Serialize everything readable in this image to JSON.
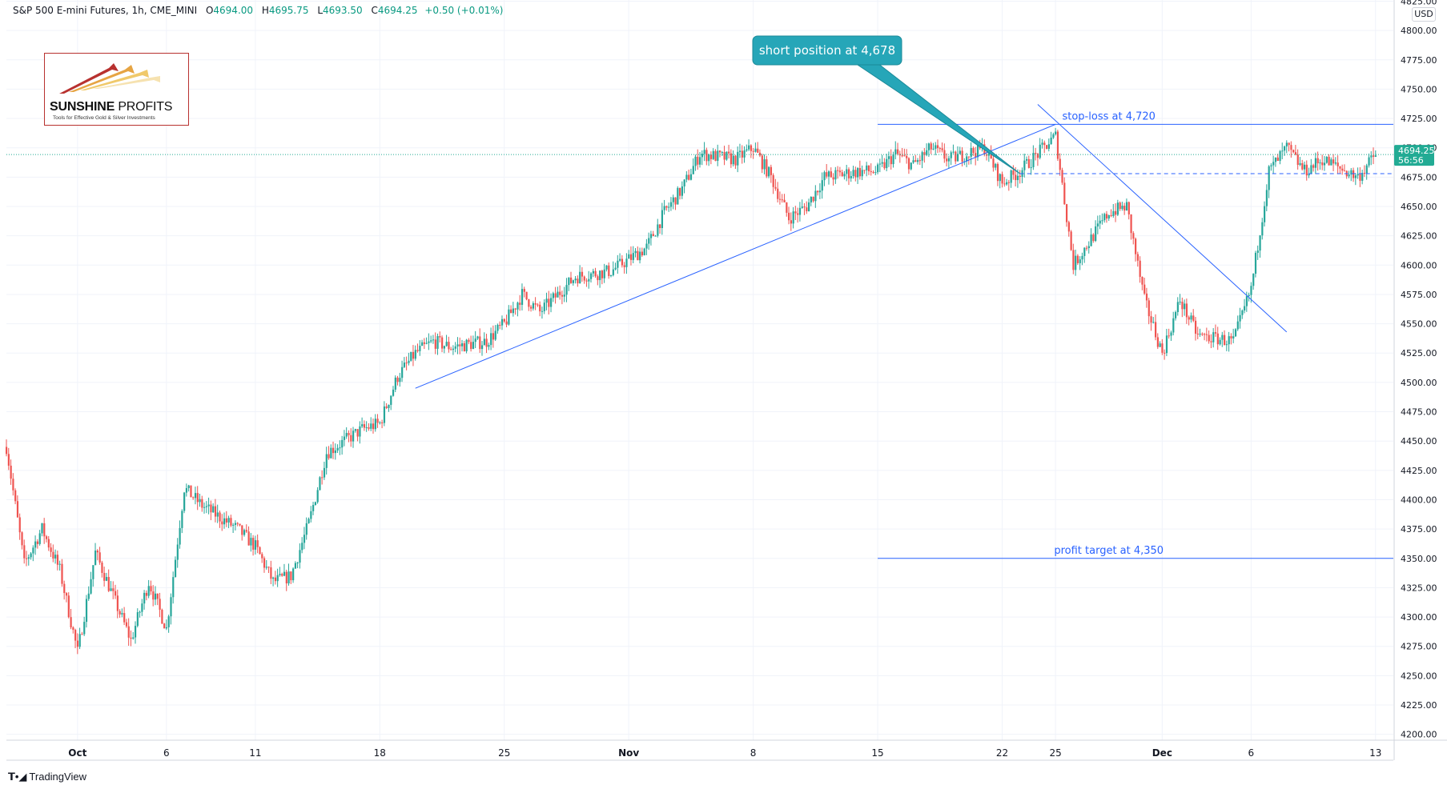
{
  "header": {
    "symbol": "S&P 500 E-mini Futures, 1h, CME_MINI",
    "o_label": "O",
    "o_value": "4694.00",
    "h_label": "H",
    "h_value": "4695.75",
    "l_label": "L",
    "l_value": "4693.50",
    "c_label": "C",
    "c_value": "4694.25",
    "change": "+0.50 (+0.01%)"
  },
  "currency": "USD",
  "logo": {
    "brand_bold": "SUNSHINE",
    "brand_thin": " PROFITS",
    "tagline": "Tools for Effective Gold & Silver Investments"
  },
  "footer": {
    "brand": "TradingView",
    "icon": "tradingview-logo-icon"
  },
  "colors": {
    "up": "#26a69a",
    "down": "#ef5350",
    "line": "#2962ff",
    "callout": "#26a6b8",
    "current": "#22ab94"
  },
  "chart_data": {
    "type": "candlestick",
    "title": "S&P 500 E-mini Futures, 1h, CME_MINI",
    "y_ticks": [
      4825,
      4800,
      4775,
      4750,
      4725,
      4700,
      4675,
      4650,
      4625,
      4600,
      4575,
      4550,
      4525,
      4500,
      4475,
      4450,
      4425,
      4400,
      4375,
      4350,
      4325,
      4300,
      4275,
      4250,
      4225,
      4200
    ],
    "ylim": [
      4195,
      4826
    ],
    "x_range_days": [
      "2021-09-27",
      "2021-12-14"
    ],
    "x_ticks": [
      {
        "date": "2021-10-01",
        "label": "Oct"
      },
      {
        "date": "2021-10-06",
        "label": "6"
      },
      {
        "date": "2021-10-11",
        "label": "11"
      },
      {
        "date": "2021-10-18",
        "label": "18"
      },
      {
        "date": "2021-10-25",
        "label": "25"
      },
      {
        "date": "2021-11-01",
        "label": "Nov"
      },
      {
        "date": "2021-11-08",
        "label": "8"
      },
      {
        "date": "2021-11-15",
        "label": "15"
      },
      {
        "date": "2021-11-22",
        "label": "22"
      },
      {
        "date": "2021-11-25",
        "label": "25"
      },
      {
        "date": "2021-12-01",
        "label": "Dec"
      },
      {
        "date": "2021-12-06",
        "label": "6"
      },
      {
        "date": "2021-12-13",
        "label": "13"
      }
    ],
    "price_path": [
      [
        "2021-09-27",
        4445
      ],
      [
        "2021-09-28",
        4345
      ],
      [
        "2021-09-29",
        4375
      ],
      [
        "2021-09-30",
        4340
      ],
      [
        "2021-10-01",
        4270
      ],
      [
        "2021-10-02",
        4355
      ],
      [
        "2021-10-04",
        4280
      ],
      [
        "2021-10-05",
        4330
      ],
      [
        "2021-10-06",
        4290
      ],
      [
        "2021-10-07",
        4410
      ],
      [
        "2021-10-08",
        4395
      ],
      [
        "2021-10-10",
        4375
      ],
      [
        "2021-10-11",
        4360
      ],
      [
        "2021-10-12",
        4330
      ],
      [
        "2021-10-13",
        4335
      ],
      [
        "2021-10-14",
        4380
      ],
      [
        "2021-10-15",
        4440
      ],
      [
        "2021-10-17",
        4460
      ],
      [
        "2021-10-18",
        4465
      ],
      [
        "2021-10-19",
        4505
      ],
      [
        "2021-10-20",
        4525
      ],
      [
        "2021-10-21",
        4535
      ],
      [
        "2021-10-22",
        4530
      ],
      [
        "2021-10-24",
        4535
      ],
      [
        "2021-10-25",
        4550
      ],
      [
        "2021-10-26",
        4575
      ],
      [
        "2021-10-27",
        4560
      ],
      [
        "2021-10-28",
        4575
      ],
      [
        "2021-10-29",
        4590
      ],
      [
        "2021-10-31",
        4595
      ],
      [
        "2021-11-01",
        4605
      ],
      [
        "2021-11-02",
        4615
      ],
      [
        "2021-11-03",
        4645
      ],
      [
        "2021-11-04",
        4665
      ],
      [
        "2021-11-05",
        4695
      ],
      [
        "2021-11-07",
        4690
      ],
      [
        "2021-11-08",
        4700
      ],
      [
        "2021-11-09",
        4675
      ],
      [
        "2021-11-10",
        4640
      ],
      [
        "2021-11-11",
        4650
      ],
      [
        "2021-11-12",
        4675
      ],
      [
        "2021-11-14",
        4680
      ],
      [
        "2021-11-15",
        4680
      ],
      [
        "2021-11-16",
        4695
      ],
      [
        "2021-11-17",
        4685
      ],
      [
        "2021-11-18",
        4700
      ],
      [
        "2021-11-19",
        4690
      ],
      [
        "2021-11-21",
        4700
      ],
      [
        "2021-11-22",
        4670
      ],
      [
        "2021-11-23",
        4680
      ],
      [
        "2021-11-24",
        4695
      ],
      [
        "2021-11-25",
        4710
      ],
      [
        "2021-11-26",
        4600
      ],
      [
        "2021-11-28",
        4645
      ],
      [
        "2021-11-29",
        4650
      ],
      [
        "2021-11-30",
        4570
      ],
      [
        "2021-12-01",
        4525
      ],
      [
        "2021-12-02",
        4570
      ],
      [
        "2021-12-03",
        4540
      ],
      [
        "2021-12-05",
        4535
      ],
      [
        "2021-12-06",
        4580
      ],
      [
        "2021-12-07",
        4680
      ],
      [
        "2021-12-08",
        4700
      ],
      [
        "2021-12-09",
        4680
      ],
      [
        "2021-12-10",
        4690
      ],
      [
        "2021-12-12",
        4675
      ],
      [
        "2021-12-13",
        4694.25
      ]
    ],
    "last_price": {
      "value": 4694.25,
      "label": "4694.25",
      "countdown": "56:56"
    },
    "horizontal_lines": [
      {
        "name": "stop-loss",
        "price": 4720,
        "from": "2021-11-15",
        "to": "2021-12-14",
        "label": "stop-loss at 4,720",
        "label_date": "2021-11-28"
      },
      {
        "name": "profit-target",
        "price": 4350,
        "from": "2021-11-15",
        "to": "2021-12-14",
        "label": "profit target at 4,350",
        "label_date": "2021-11-28"
      },
      {
        "name": "short-entry",
        "price": 4678,
        "from": "2021-11-23",
        "to": "2021-12-14",
        "dashed": true
      }
    ],
    "trend_lines": [
      {
        "name": "rising-support-line",
        "from": [
          "2021-10-20",
          4495
        ],
        "to": [
          "2021-11-25",
          4720
        ]
      },
      {
        "name": "falling-resistance-line",
        "from": [
          "2021-11-24",
          4737
        ],
        "to": [
          "2021-12-08",
          4543
        ]
      }
    ],
    "callout": {
      "text": "short position at 4,678",
      "target": [
        "2021-11-23",
        4678
      ]
    }
  }
}
